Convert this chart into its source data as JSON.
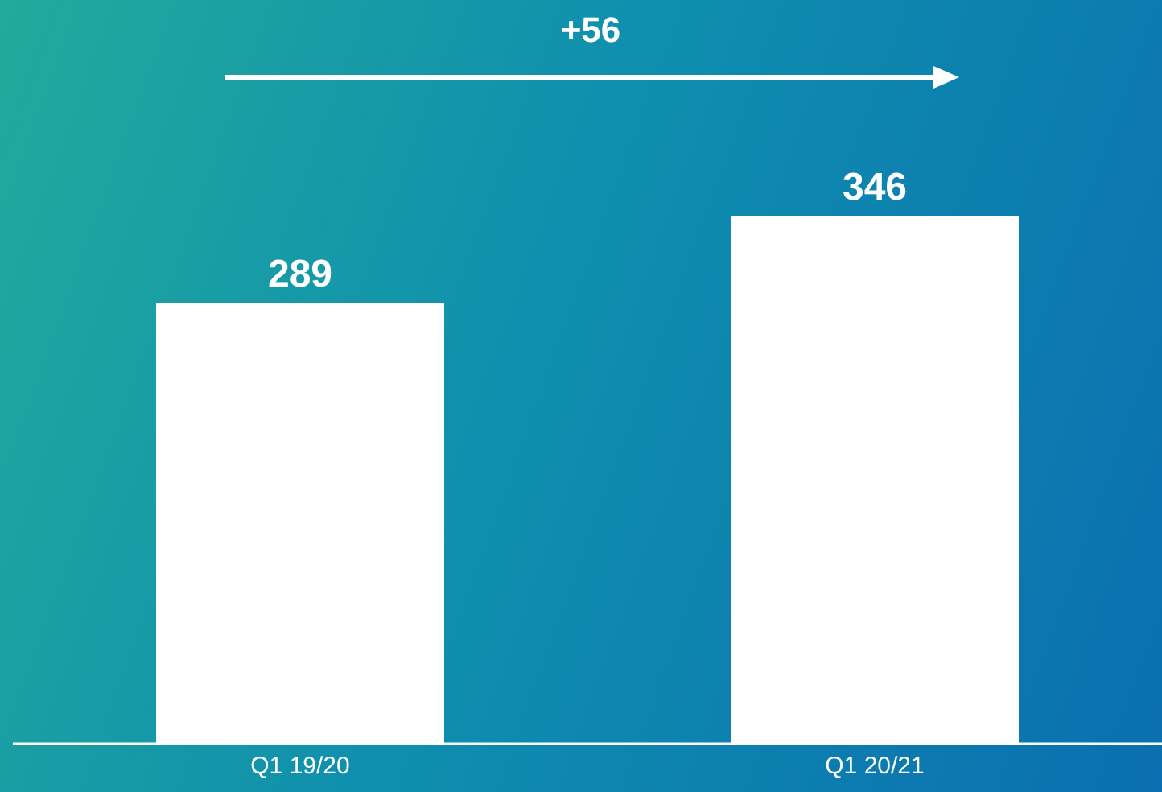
{
  "chart_data": {
    "type": "bar",
    "categories": [
      "Q1 19/20",
      "Q1 20/21"
    ],
    "values": [
      289,
      346
    ],
    "color": "#ffffff",
    "data_labels": true,
    "annotations": [
      "+56"
    ]
  }
}
